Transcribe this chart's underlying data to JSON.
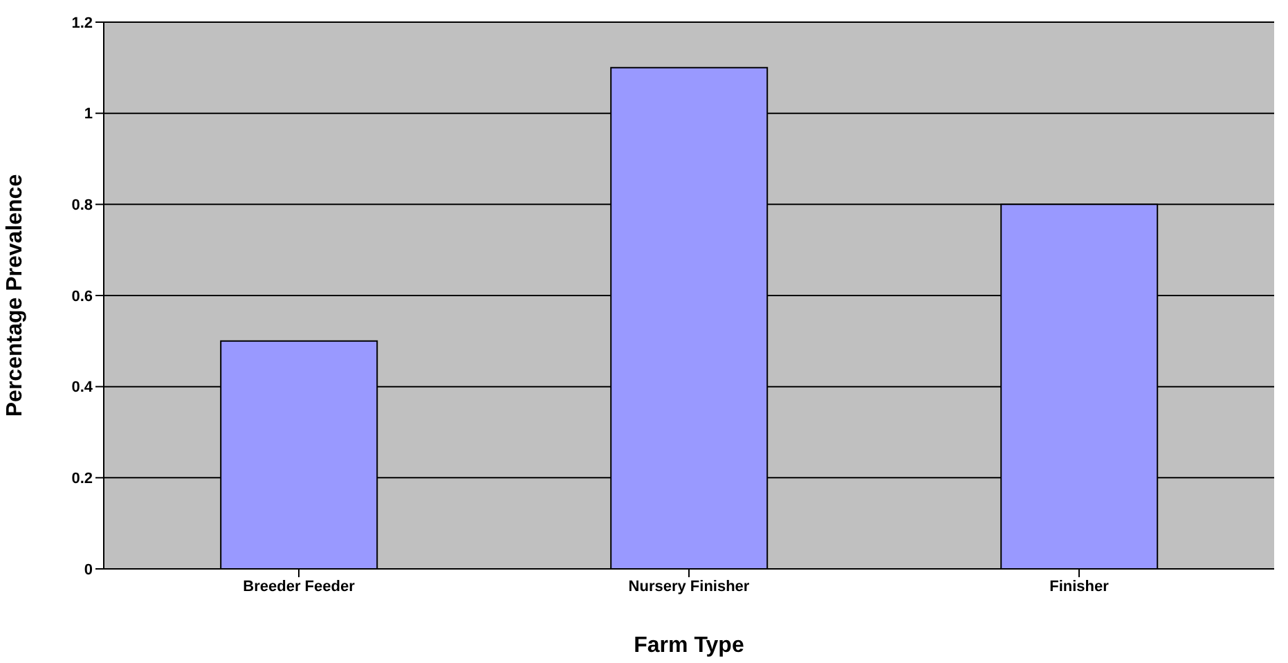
{
  "chart_data": {
    "type": "bar",
    "xlabel": "Farm Type",
    "ylabel": "Percentage Prevalence",
    "categories": [
      "Breeder Feeder",
      "Nursery Finisher",
      "Finisher"
    ],
    "values": [
      0.5,
      1.1,
      0.8
    ],
    "color": "#9999ff",
    "ylim": [
      0,
      1.2
    ],
    "yticks": [
      0,
      0.2,
      0.4,
      0.6,
      0.8,
      1,
      1.2
    ],
    "grid": "y",
    "legend": false
  }
}
